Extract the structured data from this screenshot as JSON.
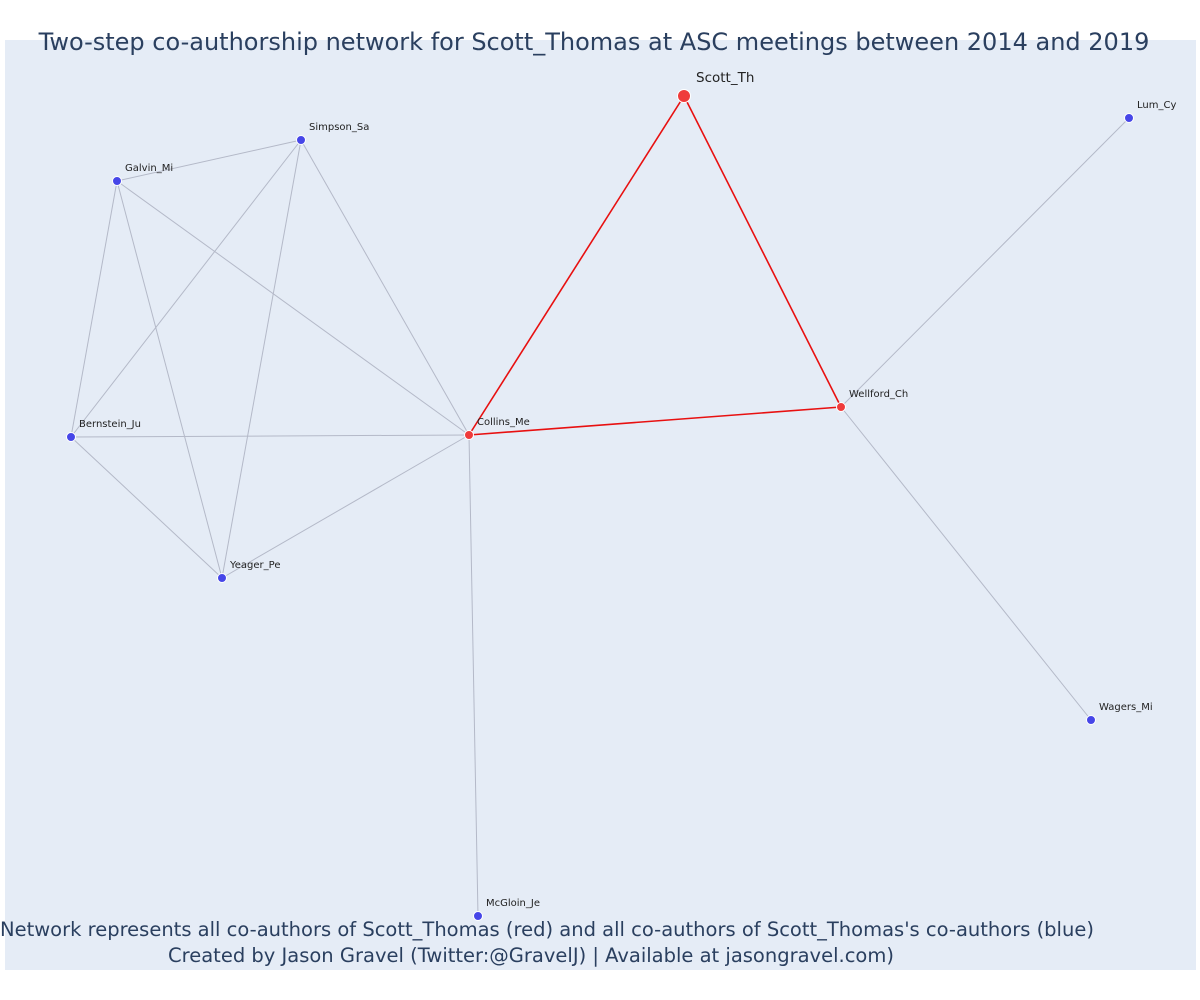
{
  "title": "Two-step co-authorship network for Scott_Thomas at ASC meetings between 2014 and 2019",
  "caption": {
    "line1": "Network represents all co-authors of Scott_Thomas (red) and all co-authors of Scott_Thomas's co-authors (blue)",
    "line2": "Created by Jason Gravel (Twitter:@GravelJ) | Available at jasongravel.com)"
  },
  "colors": {
    "background": "#e5ecf6",
    "focal_node": "#ef3b3b",
    "coauthor_node": "#ef3b3b",
    "second_step_node": "#4646e8",
    "focal_edge": "#e81010",
    "other_edge": "#b4b9c8",
    "text": "#2a3f5f"
  },
  "nodes": [
    {
      "id": "scott",
      "label": "Scott_Th",
      "group": "focal"
    },
    {
      "id": "collins",
      "label": "Collins_Me",
      "group": "coauthor"
    },
    {
      "id": "wellford",
      "label": "Wellford_Ch",
      "group": "coauthor"
    },
    {
      "id": "simpson",
      "label": "Simpson_Sa",
      "group": "second"
    },
    {
      "id": "galvin",
      "label": "Galvin_Mi",
      "group": "second"
    },
    {
      "id": "bernstein",
      "label": "Bernstein_Ju",
      "group": "second"
    },
    {
      "id": "yeager",
      "label": "Yeager_Pe",
      "group": "second"
    },
    {
      "id": "mcgloin",
      "label": "McGloin_Je",
      "group": "second"
    },
    {
      "id": "lum",
      "label": "Lum_Cy",
      "group": "second"
    },
    {
      "id": "wagers",
      "label": "Wagers_Mi",
      "group": "second"
    }
  ],
  "edges": [
    {
      "source": "scott",
      "target": "collins",
      "focal": true
    },
    {
      "source": "scott",
      "target": "wellford",
      "focal": true
    },
    {
      "source": "collins",
      "target": "wellford",
      "focal": true
    },
    {
      "source": "galvin",
      "target": "simpson",
      "focal": false
    },
    {
      "source": "galvin",
      "target": "bernstein",
      "focal": false
    },
    {
      "source": "galvin",
      "target": "yeager",
      "focal": false
    },
    {
      "source": "galvin",
      "target": "collins",
      "focal": false
    },
    {
      "source": "simpson",
      "target": "bernstein",
      "focal": false
    },
    {
      "source": "simpson",
      "target": "yeager",
      "focal": false
    },
    {
      "source": "simpson",
      "target": "collins",
      "focal": false
    },
    {
      "source": "bernstein",
      "target": "collins",
      "focal": false
    },
    {
      "source": "bernstein",
      "target": "yeager",
      "focal": false
    },
    {
      "source": "yeager",
      "target": "collins",
      "focal": false
    },
    {
      "source": "collins",
      "target": "mcgloin",
      "focal": false
    },
    {
      "source": "wellford",
      "target": "lum",
      "focal": false
    },
    {
      "source": "wellford",
      "target": "wagers",
      "focal": false
    }
  ]
}
